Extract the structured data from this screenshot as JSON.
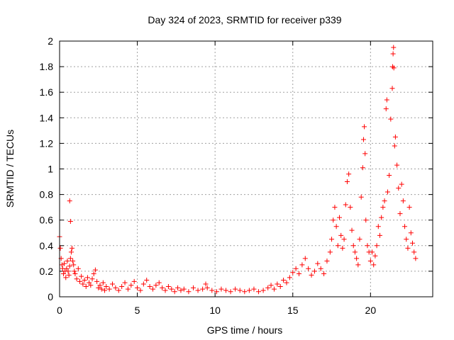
{
  "chart_data": {
    "type": "scatter",
    "title": "Day 324 of 2023, SRMTID for receiver p339",
    "xlabel": "GPS time / hours",
    "ylabel": "SRMTID / TECUs",
    "xlim": [
      0,
      24
    ],
    "ylim": [
      0,
      2
    ],
    "x_ticks": [
      0,
      5,
      10,
      15,
      20
    ],
    "y_ticks": [
      0,
      0.2,
      0.4,
      0.6,
      0.8,
      1,
      1.2,
      1.4,
      1.6,
      1.8,
      2
    ],
    "x_tick_labels": [
      "0",
      "5",
      "10",
      "15",
      "20"
    ],
    "y_tick_labels": [
      "0",
      "0.2",
      "0.4",
      "0.6",
      "0.8",
      "1",
      "1.2",
      "1.4",
      "1.6",
      "1.8",
      "2"
    ],
    "grid": true,
    "marker": "+",
    "color": "#ff0000",
    "series": [
      {
        "name": "SRMTID",
        "points": [
          [
            0.0,
            0.47
          ],
          [
            0.05,
            0.38
          ],
          [
            0.1,
            0.3
          ],
          [
            0.15,
            0.25
          ],
          [
            0.2,
            0.22
          ],
          [
            0.25,
            0.18
          ],
          [
            0.3,
            0.26
          ],
          [
            0.35,
            0.2
          ],
          [
            0.4,
            0.15
          ],
          [
            0.45,
            0.22
          ],
          [
            0.5,
            0.28
          ],
          [
            0.55,
            0.2
          ],
          [
            0.6,
            0.17
          ],
          [
            0.65,
            0.24
          ],
          [
            0.7,
            0.3
          ],
          [
            0.75,
            0.35
          ],
          [
            0.8,
            0.38
          ],
          [
            0.85,
            0.28
          ],
          [
            0.9,
            0.25
          ],
          [
            0.95,
            0.2
          ],
          [
            0.65,
            0.75
          ],
          [
            0.7,
            0.59
          ],
          [
            1.0,
            0.18
          ],
          [
            1.1,
            0.14
          ],
          [
            1.2,
            0.22
          ],
          [
            1.3,
            0.12
          ],
          [
            1.4,
            0.16
          ],
          [
            1.5,
            0.1
          ],
          [
            1.6,
            0.13
          ],
          [
            1.7,
            0.08
          ],
          [
            1.8,
            0.15
          ],
          [
            1.9,
            0.11
          ],
          [
            2.0,
            0.09
          ],
          [
            2.1,
            0.14
          ],
          [
            2.2,
            0.18
          ],
          [
            2.3,
            0.21
          ],
          [
            2.4,
            0.12
          ],
          [
            2.5,
            0.07
          ],
          [
            2.6,
            0.09
          ],
          [
            2.7,
            0.06
          ],
          [
            2.8,
            0.11
          ],
          [
            2.9,
            0.05
          ],
          [
            3.0,
            0.08
          ],
          [
            3.2,
            0.06
          ],
          [
            3.4,
            0.1
          ],
          [
            3.6,
            0.07
          ],
          [
            3.8,
            0.05
          ],
          [
            4.0,
            0.08
          ],
          [
            4.2,
            0.11
          ],
          [
            4.4,
            0.06
          ],
          [
            4.6,
            0.09
          ],
          [
            4.8,
            0.12
          ],
          [
            5.0,
            0.07
          ],
          [
            5.2,
            0.05
          ],
          [
            5.4,
            0.1
          ],
          [
            5.6,
            0.13
          ],
          [
            5.8,
            0.08
          ],
          [
            6.0,
            0.06
          ],
          [
            6.2,
            0.09
          ],
          [
            6.4,
            0.11
          ],
          [
            6.6,
            0.07
          ],
          [
            6.8,
            0.05
          ],
          [
            7.0,
            0.08
          ],
          [
            7.2,
            0.06
          ],
          [
            7.4,
            0.04
          ],
          [
            7.6,
            0.07
          ],
          [
            7.8,
            0.05
          ],
          [
            8.0,
            0.06
          ],
          [
            8.3,
            0.04
          ],
          [
            8.6,
            0.07
          ],
          [
            8.9,
            0.05
          ],
          [
            9.2,
            0.06
          ],
          [
            9.4,
            0.1
          ],
          [
            9.5,
            0.07
          ],
          [
            9.8,
            0.05
          ],
          [
            10.1,
            0.04
          ],
          [
            10.4,
            0.06
          ],
          [
            10.7,
            0.05
          ],
          [
            11.0,
            0.04
          ],
          [
            11.3,
            0.06
          ],
          [
            11.6,
            0.05
          ],
          [
            11.9,
            0.04
          ],
          [
            12.2,
            0.05
          ],
          [
            12.5,
            0.06
          ],
          [
            12.8,
            0.04
          ],
          [
            13.1,
            0.05
          ],
          [
            13.4,
            0.07
          ],
          [
            13.6,
            0.09
          ],
          [
            13.8,
            0.06
          ],
          [
            14.0,
            0.1
          ],
          [
            14.2,
            0.08
          ],
          [
            14.4,
            0.13
          ],
          [
            14.6,
            0.11
          ],
          [
            14.8,
            0.15
          ],
          [
            15.0,
            0.19
          ],
          [
            15.2,
            0.22
          ],
          [
            15.4,
            0.18
          ],
          [
            15.6,
            0.25
          ],
          [
            15.8,
            0.3
          ],
          [
            16.0,
            0.22
          ],
          [
            16.2,
            0.17
          ],
          [
            16.4,
            0.2
          ],
          [
            16.6,
            0.26
          ],
          [
            16.8,
            0.22
          ],
          [
            17.0,
            0.18
          ],
          [
            17.2,
            0.28
          ],
          [
            17.4,
            0.35
          ],
          [
            17.5,
            0.45
          ],
          [
            17.6,
            0.6
          ],
          [
            17.7,
            0.7
          ],
          [
            17.8,
            0.55
          ],
          [
            17.9,
            0.4
          ],
          [
            18.0,
            0.62
          ],
          [
            18.1,
            0.48
          ],
          [
            18.2,
            0.38
          ],
          [
            18.3,
            0.45
          ],
          [
            18.4,
            0.72
          ],
          [
            18.5,
            0.9
          ],
          [
            18.6,
            0.96
          ],
          [
            18.7,
            0.7
          ],
          [
            18.8,
            0.52
          ],
          [
            18.9,
            0.4
          ],
          [
            19.0,
            0.35
          ],
          [
            19.1,
            0.3
          ],
          [
            19.2,
            0.25
          ],
          [
            19.3,
            0.45
          ],
          [
            19.4,
            0.78
          ],
          [
            19.5,
            1.01
          ],
          [
            19.55,
            1.23
          ],
          [
            19.6,
            1.33
          ],
          [
            19.65,
            1.12
          ],
          [
            19.7,
            0.6
          ],
          [
            19.8,
            0.4
          ],
          [
            19.9,
            0.35
          ],
          [
            20.0,
            0.28
          ],
          [
            20.1,
            0.35
          ],
          [
            20.2,
            0.25
          ],
          [
            20.3,
            0.32
          ],
          [
            20.4,
            0.4
          ],
          [
            20.5,
            0.55
          ],
          [
            20.6,
            0.48
          ],
          [
            20.7,
            0.62
          ],
          [
            20.8,
            0.7
          ],
          [
            20.9,
            0.75
          ],
          [
            21.0,
            1.47
          ],
          [
            21.05,
            1.54
          ],
          [
            21.1,
            0.82
          ],
          [
            21.2,
            0.95
          ],
          [
            21.3,
            1.39
          ],
          [
            21.4,
            1.63
          ],
          [
            21.42,
            1.8
          ],
          [
            21.45,
            1.9
          ],
          [
            21.48,
            1.95
          ],
          [
            21.5,
            1.79
          ],
          [
            21.55,
            1.18
          ],
          [
            21.6,
            1.25
          ],
          [
            21.7,
            1.03
          ],
          [
            21.8,
            0.85
          ],
          [
            21.9,
            0.65
          ],
          [
            22.0,
            0.88
          ],
          [
            22.1,
            0.75
          ],
          [
            22.2,
            0.55
          ],
          [
            22.3,
            0.45
          ],
          [
            22.4,
            0.38
          ],
          [
            22.5,
            0.7
          ],
          [
            22.6,
            0.5
          ],
          [
            22.7,
            0.42
          ],
          [
            22.8,
            0.35
          ],
          [
            22.9,
            0.3
          ]
        ]
      }
    ]
  }
}
